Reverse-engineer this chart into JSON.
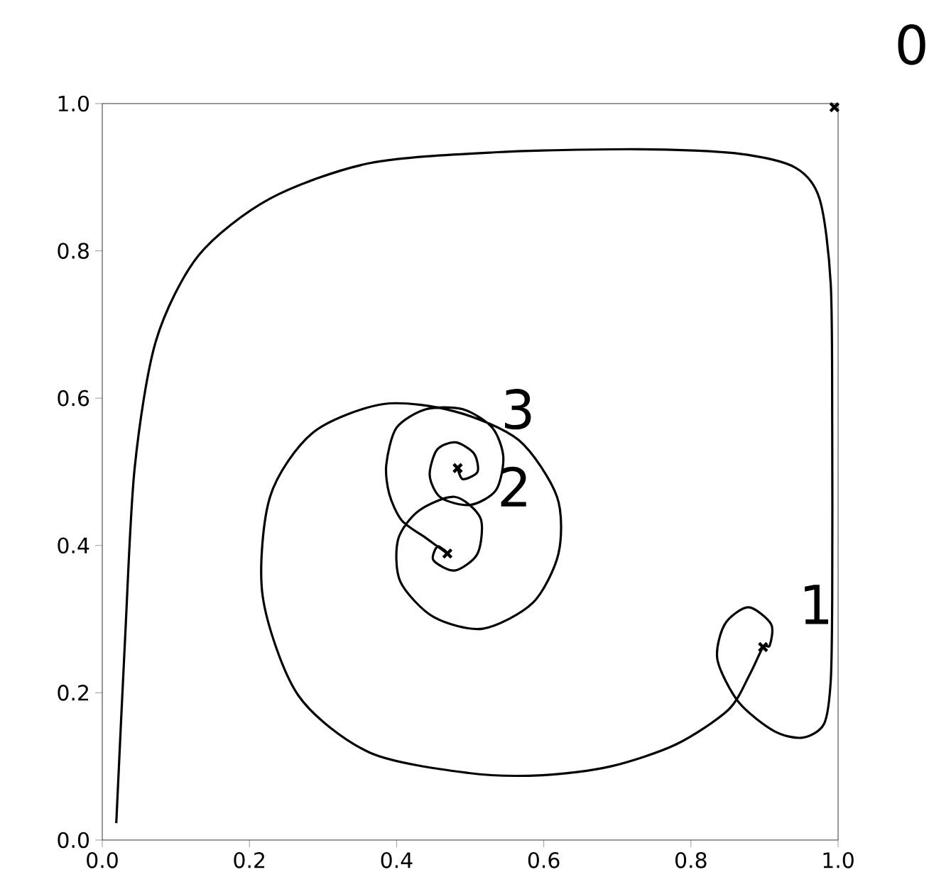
{
  "chart_data": {
    "type": "line",
    "xlim": [
      0,
      1
    ],
    "ylim": [
      0,
      1
    ],
    "xticks": [
      {
        "value": 0,
        "label": "0.0"
      },
      0.2,
      0.4,
      0.6,
      0.8,
      {
        "value": 1,
        "label": "1.0"
      }
    ],
    "yticks": [
      {
        "value": 0,
        "label": "0.0"
      },
      0.2,
      0.4,
      0.6,
      0.8,
      {
        "value": 1,
        "label": "1.0"
      }
    ],
    "grid": false,
    "series": [
      {
        "color": "#000000",
        "line_style": "solid",
        "marker": "none",
        "x": [
          0.019,
          0.031,
          0.044,
          0.073,
          0.131,
          0.228,
          0.363,
          0.537,
          0.73,
          0.865,
          0.942,
          0.975,
          0.99,
          0.992,
          0.992,
          0.99,
          0.981,
          0.952,
          0.913,
          0.865,
          0.836,
          0.846,
          0.878,
          0.909,
          0.907,
          0.898,
          0.88,
          0.851,
          0.78,
          0.691,
          0.598,
          0.498,
          0.363,
          0.266,
          0.218,
          0.228,
          0.286,
          0.382,
          0.479,
          0.566,
          0.618,
          0.62,
          0.585,
          0.517,
          0.45,
          0.405,
          0.402,
          0.43,
          0.479,
          0.514,
          0.51,
          0.479,
          0.45,
          0.456,
          0.469,
          0.44,
          0.407,
          0.39,
          0.386,
          0.4,
          0.44,
          0.49,
          0.53,
          0.545,
          0.535,
          0.5,
          0.46,
          0.445,
          0.455,
          0.48,
          0.505,
          0.51,
          0.49,
          0.483
        ],
        "values": [
          0.023,
          0.274,
          0.505,
          0.678,
          0.794,
          0.871,
          0.919,
          0.934,
          0.938,
          0.932,
          0.913,
          0.87,
          0.755,
          0.563,
          0.331,
          0.216,
          0.158,
          0.139,
          0.148,
          0.187,
          0.245,
          0.293,
          0.316,
          0.293,
          0.264,
          0.262,
          0.225,
          0.177,
          0.13,
          0.1,
          0.088,
          0.091,
          0.119,
          0.197,
          0.331,
          0.466,
          0.553,
          0.592,
          0.582,
          0.543,
          0.466,
          0.389,
          0.322,
          0.287,
          0.303,
          0.351,
          0.408,
          0.447,
          0.466,
          0.437,
          0.389,
          0.366,
          0.38,
          0.399,
          0.389,
          0.41,
          0.434,
          0.47,
          0.51,
          0.56,
          0.585,
          0.585,
          0.56,
          0.52,
          0.475,
          0.455,
          0.465,
          0.495,
          0.53,
          0.54,
          0.525,
          0.5,
          0.49,
          0.505
        ]
      },
      {
        "type": "scatter",
        "color": "#000000",
        "marker": "cross",
        "x": [
          0.995,
          0.898,
          0.469,
          0.483
        ],
        "values": [
          0.995,
          0.262,
          0.389,
          0.505
        ]
      }
    ],
    "annotations": [
      "0",
      "1",
      "2",
      "3"
    ]
  }
}
